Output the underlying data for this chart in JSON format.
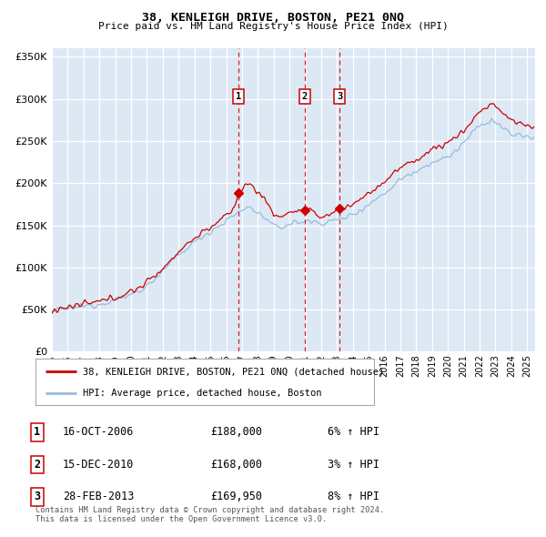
{
  "title": "38, KENLEIGH DRIVE, BOSTON, PE21 0NQ",
  "subtitle": "Price paid vs. HM Land Registry's House Price Index (HPI)",
  "plot_bg_color": "#dce9f5",
  "grid_color": "#ffffff",
  "sale_color": "#cc0000",
  "hpi_color": "#99bbdd",
  "vline_color": "#cc0000",
  "legend_sale": "38, KENLEIGH DRIVE, BOSTON, PE21 0NQ (detached house)",
  "legend_hpi": "HPI: Average price, detached house, Boston",
  "sale_year_vals": [
    2006.79,
    2010.96,
    2013.16
  ],
  "sale_prices": [
    188000,
    168000,
    169950
  ],
  "sale_labels": [
    "1",
    "2",
    "3"
  ],
  "table_entries": [
    {
      "label": "1",
      "date": "16-OCT-2006",
      "price": "£188,000",
      "change": "6% ↑ HPI"
    },
    {
      "label": "2",
      "date": "15-DEC-2010",
      "price": "£168,000",
      "change": "3% ↑ HPI"
    },
    {
      "label": "3",
      "date": "28-FEB-2013",
      "price": "£169,950",
      "change": "8% ↑ HPI"
    }
  ],
  "footer": "Contains HM Land Registry data © Crown copyright and database right 2024.\nThis data is licensed under the Open Government Licence v3.0.",
  "ylim": [
    0,
    360000
  ],
  "yticks": [
    0,
    50000,
    100000,
    150000,
    200000,
    250000,
    300000,
    350000
  ],
  "ytick_labels": [
    "£0",
    "£50K",
    "£100K",
    "£150K",
    "£200K",
    "£250K",
    "£300K",
    "£350K"
  ],
  "xlim_start": 1995.0,
  "xlim_end": 2025.5
}
